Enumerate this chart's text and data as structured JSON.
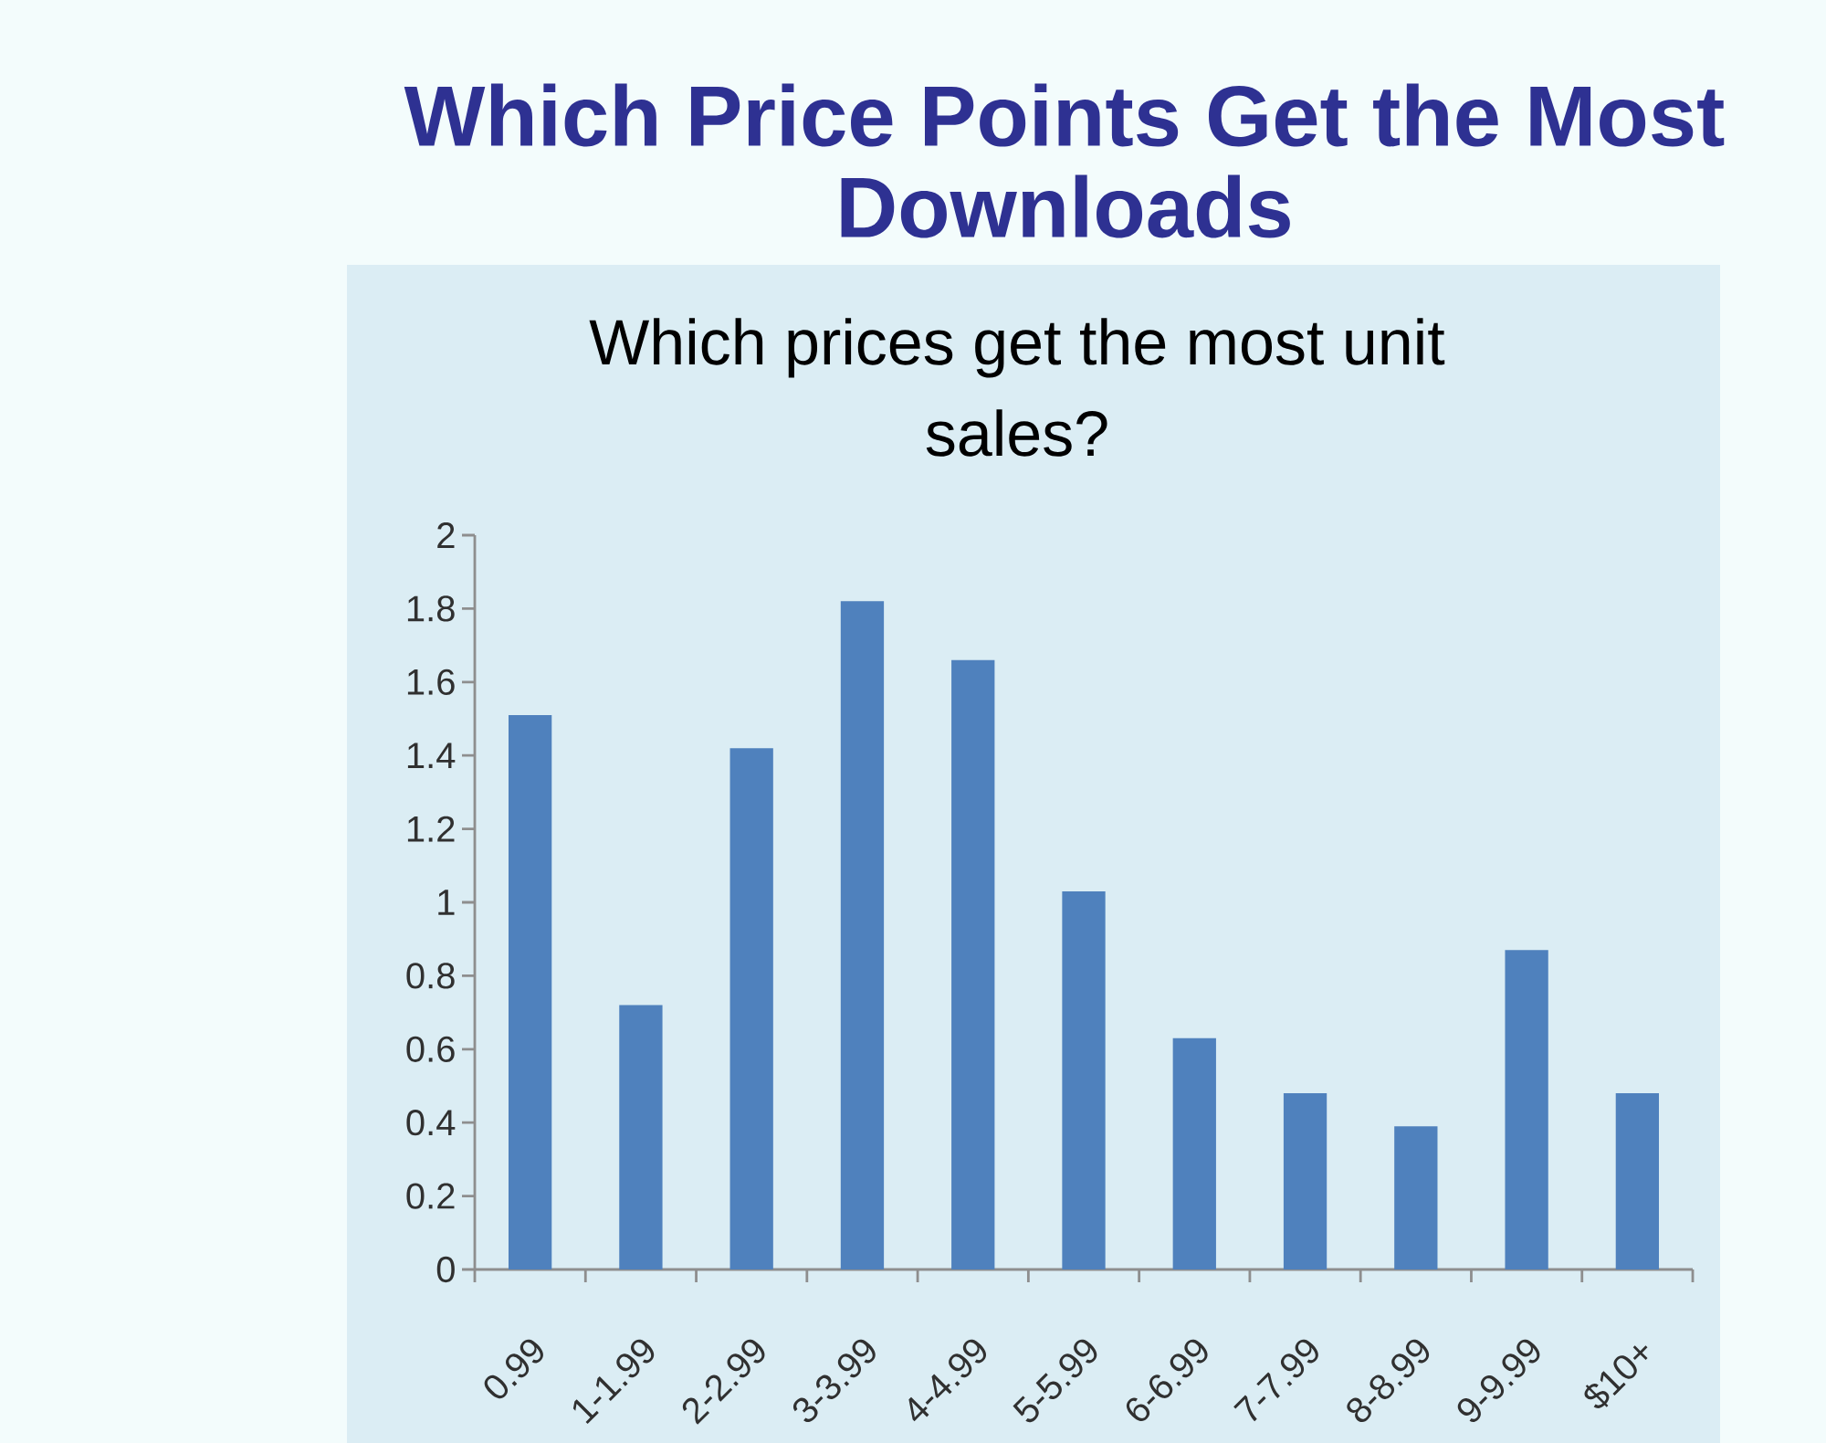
{
  "chart_data": {
    "type": "bar",
    "title": "Which Price Points Get the Most Downloads",
    "subtitle": "Which prices get the most unit sales?",
    "categories": [
      "0.99",
      "1-1.99",
      "2-2.99",
      "3-3.99",
      "4-4.99",
      "5-5.99",
      "6-6.99",
      "7-7.99",
      "8-8.99",
      "9-9.99",
      "$10+"
    ],
    "values": [
      1.51,
      0.72,
      1.42,
      1.82,
      1.66,
      1.03,
      0.63,
      0.48,
      0.39,
      0.87,
      0.48
    ],
    "color": "#4f81bd",
    "ylim": [
      0,
      2
    ],
    "yticks": [
      0,
      0.2,
      0.4,
      0.6,
      0.8,
      1,
      1.2,
      1.4,
      1.6,
      1.8,
      2
    ]
  }
}
